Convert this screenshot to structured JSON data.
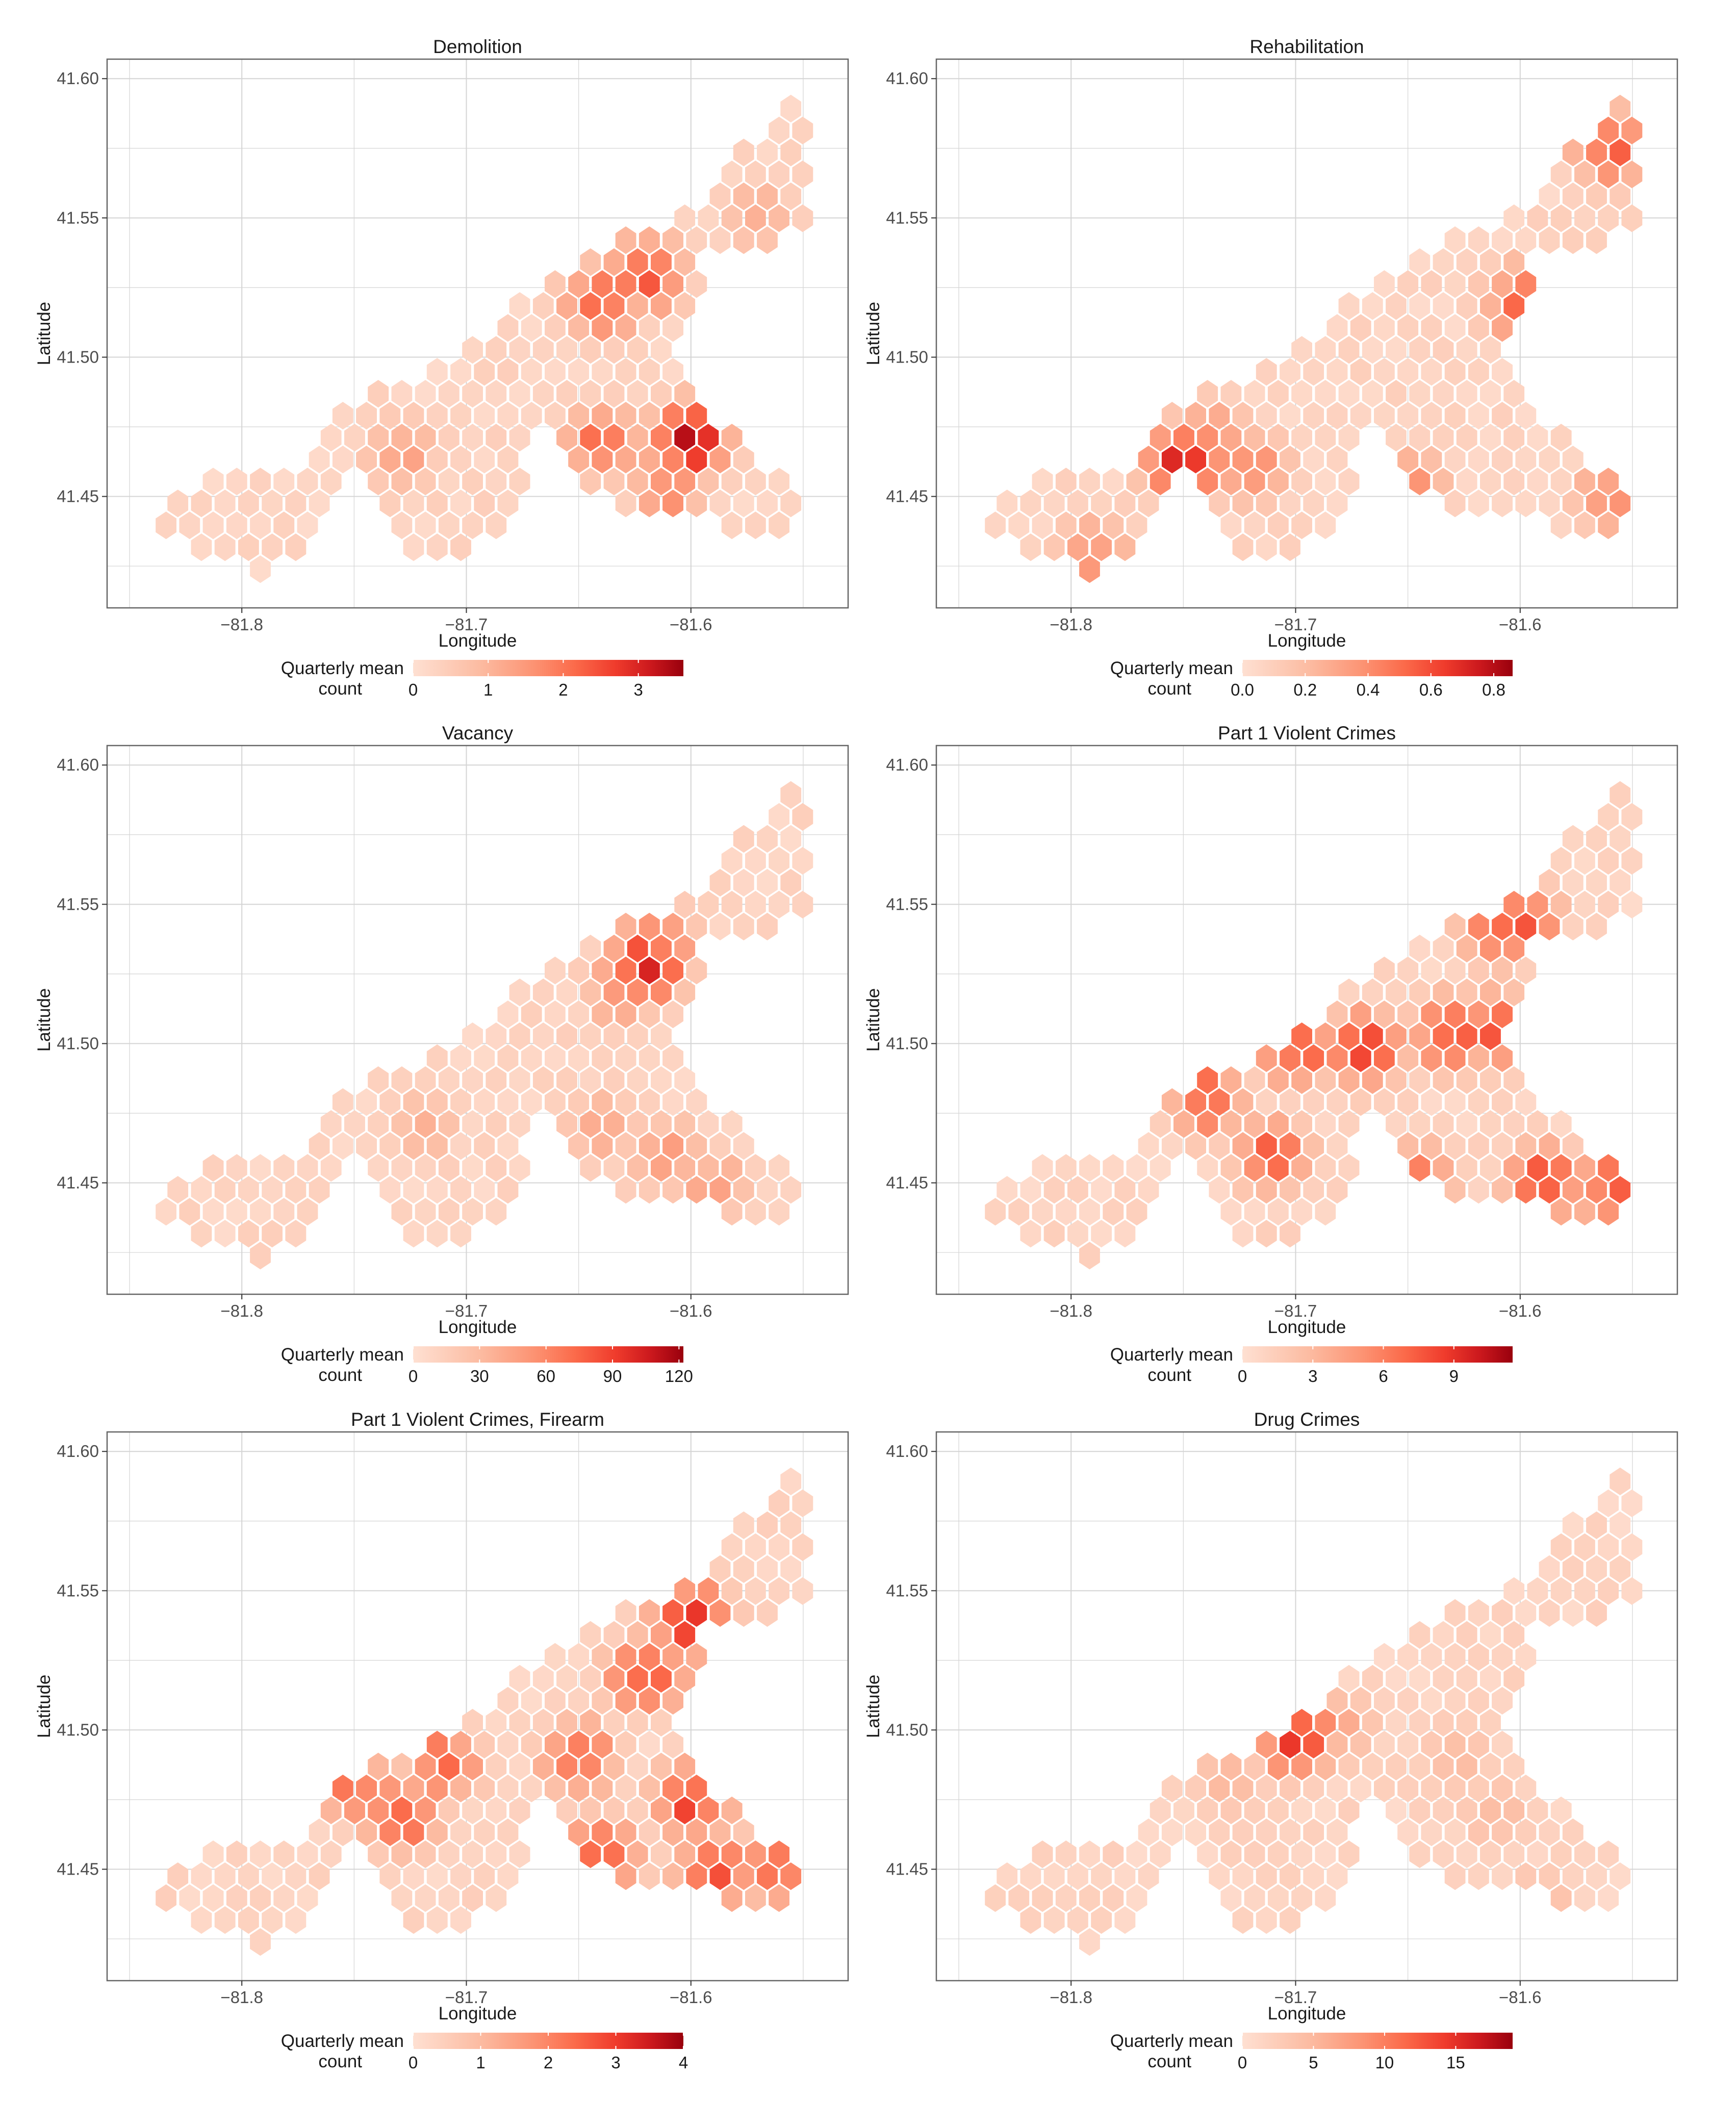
{
  "figure": {
    "axis_titles": {
      "x": "Longitude",
      "y": "Latitude"
    },
    "legend_title": [
      "Quarterly mean",
      "count"
    ],
    "colors": {
      "low": "#fee0d2",
      "mid": "#fb6a4a",
      "high": "#99000d",
      "panel_border": "#666666",
      "grid": "#d4d4d4"
    }
  },
  "chart_data": [
    {
      "type": "heatmap",
      "title": "Demolition",
      "xlabel": "Longitude",
      "ylabel": "Latitude",
      "xlim": [
        -81.86,
        -81.53
      ],
      "ylim": [
        41.41,
        41.607
      ],
      "x_ticks": [
        -81.8,
        -81.7,
        -81.6
      ],
      "x_tick_labels": [
        "−81.8",
        "−81.7",
        "−81.6"
      ],
      "y_ticks": [
        41.45,
        41.5,
        41.55,
        41.6
      ],
      "y_tick_labels": [
        "41.45",
        "41.50",
        "41.55",
        "41.60"
      ],
      "legend": {
        "title": [
          "Quarterly mean",
          "count"
        ],
        "range": [
          0,
          3.6
        ],
        "ticks": [
          0,
          1,
          2,
          3
        ],
        "tick_labels": [
          "0",
          "1",
          "2",
          "3"
        ]
      },
      "grid": true,
      "hotspots": [
        {
          "lon": -81.62,
          "lat": 41.53,
          "value": 3.0
        },
        {
          "lon": -81.64,
          "lat": 41.52,
          "value": 2.6
        },
        {
          "lon": -81.6,
          "lat": 41.47,
          "value": 3.5
        },
        {
          "lon": -81.64,
          "lat": 41.47,
          "value": 2.4
        },
        {
          "lon": -81.61,
          "lat": 41.455,
          "value": 2.2
        },
        {
          "lon": -81.73,
          "lat": 41.465,
          "value": 1.6
        },
        {
          "lon": -81.57,
          "lat": 41.55,
          "value": 1.4
        }
      ]
    },
    {
      "type": "heatmap",
      "title": "Rehabilitation",
      "xlabel": "Longitude",
      "ylabel": "Latitude",
      "xlim": [
        -81.86,
        -81.53
      ],
      "ylim": [
        41.41,
        41.607
      ],
      "x_ticks": [
        -81.8,
        -81.7,
        -81.6
      ],
      "x_tick_labels": [
        "−81.8",
        "−81.7",
        "−81.6"
      ],
      "y_ticks": [
        41.45,
        41.5,
        41.55,
        41.6
      ],
      "y_tick_labels": [
        "41.45",
        "41.50",
        "41.55",
        "41.60"
      ],
      "legend": {
        "title": [
          "Quarterly mean",
          "count"
        ],
        "range": [
          0,
          0.86
        ],
        "ticks": [
          0,
          0.2,
          0.4,
          0.6,
          0.8
        ],
        "tick_labels": [
          "0.0",
          "0.2",
          "0.4",
          "0.6",
          "0.8"
        ]
      },
      "grid": true,
      "hotspots": [
        {
          "lon": -81.75,
          "lat": 41.462,
          "value": 0.84
        },
        {
          "lon": -81.74,
          "lat": 41.47,
          "value": 0.55
        },
        {
          "lon": -81.72,
          "lat": 41.46,
          "value": 0.5
        },
        {
          "lon": -81.6,
          "lat": 41.52,
          "value": 0.6
        },
        {
          "lon": -81.56,
          "lat": 41.575,
          "value": 0.6
        },
        {
          "lon": -81.65,
          "lat": 41.455,
          "value": 0.45
        },
        {
          "lon": -81.56,
          "lat": 41.45,
          "value": 0.45
        },
        {
          "lon": -81.79,
          "lat": 41.43,
          "value": 0.45
        }
      ]
    },
    {
      "type": "heatmap",
      "title": "Vacancy",
      "xlabel": "Longitude",
      "ylabel": "Latitude",
      "xlim": [
        -81.86,
        -81.53
      ],
      "ylim": [
        41.41,
        41.607
      ],
      "x_ticks": [
        -81.8,
        -81.7,
        -81.6
      ],
      "x_tick_labels": [
        "−81.8",
        "−81.7",
        "−81.6"
      ],
      "y_ticks": [
        41.45,
        41.5,
        41.55,
        41.6
      ],
      "y_tick_labels": [
        "41.45",
        "41.50",
        "41.55",
        "41.60"
      ],
      "legend": {
        "title": [
          "Quarterly mean",
          "count"
        ],
        "range": [
          0,
          122
        ],
        "ticks": [
          0,
          30,
          60,
          90,
          120
        ],
        "tick_labels": [
          "0",
          "30",
          "60",
          "90",
          "120"
        ]
      },
      "grid": true,
      "hotspots": [
        {
          "lon": -81.62,
          "lat": 41.528,
          "value": 120
        },
        {
          "lon": -81.615,
          "lat": 41.535,
          "value": 85
        },
        {
          "lon": -81.63,
          "lat": 41.52,
          "value": 70
        },
        {
          "lon": -81.61,
          "lat": 41.46,
          "value": 55
        },
        {
          "lon": -81.59,
          "lat": 41.45,
          "value": 50
        },
        {
          "lon": -81.64,
          "lat": 41.47,
          "value": 45
        },
        {
          "lon": -81.72,
          "lat": 41.47,
          "value": 40
        }
      ]
    },
    {
      "type": "heatmap",
      "title": "Part 1 Violent Crimes",
      "xlabel": "Longitude",
      "ylabel": "Latitude",
      "xlim": [
        -81.86,
        -81.53
      ],
      "ylim": [
        41.41,
        41.607
      ],
      "x_ticks": [
        -81.8,
        -81.7,
        -81.6
      ],
      "x_tick_labels": [
        "−81.8",
        "−81.7",
        "−81.6"
      ],
      "y_ticks": [
        41.45,
        41.5,
        41.55,
        41.6
      ],
      "y_tick_labels": [
        "41.45",
        "41.50",
        "41.55",
        "41.60"
      ],
      "legend": {
        "title": [
          "Quarterly mean",
          "count"
        ],
        "range": [
          0,
          11.5
        ],
        "ticks": [
          0,
          3,
          6,
          9
        ],
        "tick_labels": [
          "0",
          "3",
          "6",
          "9"
        ]
      },
      "grid": true,
      "hotspots": [
        {
          "lon": -81.67,
          "lat": 41.498,
          "value": 10.5
        },
        {
          "lon": -81.63,
          "lat": 41.503,
          "value": 10
        },
        {
          "lon": -81.61,
          "lat": 41.505,
          "value": 9
        },
        {
          "lon": -81.6,
          "lat": 41.545,
          "value": 9
        },
        {
          "lon": -81.61,
          "lat": 41.54,
          "value": 8
        },
        {
          "lon": -81.7,
          "lat": 41.498,
          "value": 9
        },
        {
          "lon": -81.74,
          "lat": 41.48,
          "value": 9
        },
        {
          "lon": -81.65,
          "lat": 41.45,
          "value": 9.5
        },
        {
          "lon": -81.59,
          "lat": 41.45,
          "value": 9
        },
        {
          "lon": -81.56,
          "lat": 41.45,
          "value": 9
        },
        {
          "lon": -81.71,
          "lat": 41.46,
          "value": 8
        }
      ]
    },
    {
      "type": "heatmap",
      "title": "Part 1 Violent Crimes, Firearm",
      "xlabel": "Longitude",
      "ylabel": "Latitude",
      "xlim": [
        -81.86,
        -81.53
      ],
      "ylim": [
        41.41,
        41.607
      ],
      "x_ticks": [
        -81.8,
        -81.7,
        -81.6
      ],
      "x_tick_labels": [
        "−81.8",
        "−81.7",
        "−81.6"
      ],
      "y_ticks": [
        41.45,
        41.5,
        41.55,
        41.6
      ],
      "y_tick_labels": [
        "41.45",
        "41.50",
        "41.55",
        "41.60"
      ],
      "legend": {
        "title": [
          "Quarterly mean",
          "count"
        ],
        "range": [
          0,
          4
        ],
        "ticks": [
          0,
          1,
          2,
          3,
          4
        ],
        "tick_labels": [
          "0",
          "1",
          "2",
          "3",
          "4"
        ]
      },
      "grid": true,
      "hotspots": [
        {
          "lon": -81.6,
          "lat": 41.54,
          "value": 3.6
        },
        {
          "lon": -81.62,
          "lat": 41.52,
          "value": 3.4
        },
        {
          "lon": -81.6,
          "lat": 41.475,
          "value": 3.5
        },
        {
          "lon": -81.73,
          "lat": 41.47,
          "value": 3.2
        },
        {
          "lon": -81.64,
          "lat": 41.455,
          "value": 3.2
        },
        {
          "lon": -81.59,
          "lat": 41.45,
          "value": 3.3
        },
        {
          "lon": -81.56,
          "lat": 41.45,
          "value": 3.0
        },
        {
          "lon": -81.71,
          "lat": 41.488,
          "value": 2.8
        },
        {
          "lon": -81.65,
          "lat": 41.49,
          "value": 2.8
        },
        {
          "lon": -81.75,
          "lat": 41.48,
          "value": 2.6
        }
      ]
    },
    {
      "type": "heatmap",
      "title": "Drug Crimes",
      "xlabel": "Longitude",
      "ylabel": "Latitude",
      "xlim": [
        -81.86,
        -81.53
      ],
      "ylim": [
        41.41,
        41.607
      ],
      "x_ticks": [
        -81.8,
        -81.7,
        -81.6
      ],
      "x_tick_labels": [
        "−81.8",
        "−81.7",
        "−81.6"
      ],
      "y_ticks": [
        41.45,
        41.5,
        41.55,
        41.6
      ],
      "y_tick_labels": [
        "41.45",
        "41.50",
        "41.55",
        "41.60"
      ],
      "legend": {
        "title": [
          "Quarterly mean",
          "count"
        ],
        "range": [
          0,
          19
        ],
        "ticks": [
          0,
          5,
          10,
          15
        ],
        "tick_labels": [
          "0",
          "5",
          "10",
          "15"
        ]
      },
      "grid": true,
      "hotspots": [
        {
          "lon": -81.7,
          "lat": 41.497,
          "value": 18.5
        },
        {
          "lon": -81.695,
          "lat": 41.503,
          "value": 10
        },
        {
          "lon": -81.68,
          "lat": 41.5,
          "value": 7
        },
        {
          "lon": -81.63,
          "lat": 41.49,
          "value": 6
        },
        {
          "lon": -81.73,
          "lat": 41.48,
          "value": 6
        },
        {
          "lon": -81.61,
          "lat": 41.47,
          "value": 5.5
        },
        {
          "lon": -81.59,
          "lat": 41.44,
          "value": 5
        }
      ]
    }
  ]
}
